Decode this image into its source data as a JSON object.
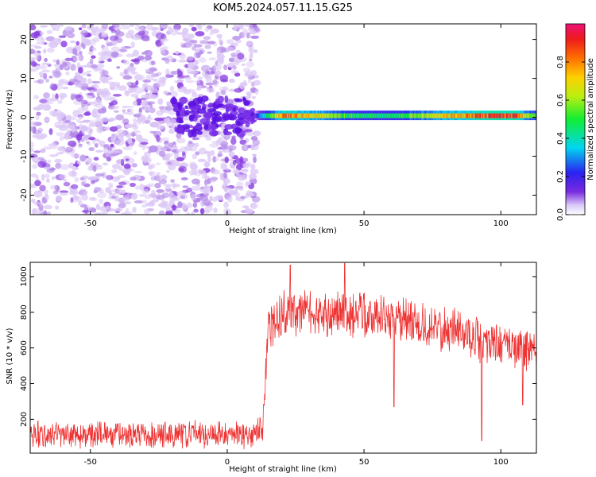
{
  "title": "KOM5.2024.057.11.15.G25",
  "chart_data": [
    {
      "type": "heatmap",
      "xlabel": "Height of straight line (km)",
      "ylabel": "Frequency (Hz)",
      "xlim": [
        -72,
        113
      ],
      "ylim": [
        -25,
        24
      ],
      "x_ticks": [
        -50,
        0,
        50,
        100
      ],
      "y_ticks": [
        -20,
        -10,
        0,
        10,
        20
      ],
      "colorbar": {
        "label": "Normalized spectral amplitude",
        "range": [
          0.0,
          1.0
        ],
        "ticks": [
          "0.0",
          "0.2",
          "0.4",
          "0.6",
          "0.8"
        ],
        "tick_values": [
          0.0,
          0.2,
          0.4,
          0.6,
          0.8
        ]
      },
      "features": {
        "noise_region_x": [
          -72,
          11
        ],
        "dense_cluster_x": [
          -20,
          10
        ],
        "carrier_line_x": [
          10,
          113
        ],
        "carrier_frequency_hz": 0.3,
        "carrier_amplitude_profile": [
          {
            "x": 12,
            "amp": 0.3
          },
          {
            "x": 20,
            "amp": 0.85
          },
          {
            "x": 30,
            "amp": 0.75
          },
          {
            "x": 45,
            "amp": 0.5
          },
          {
            "x": 60,
            "amp": 0.45
          },
          {
            "x": 75,
            "amp": 0.7
          },
          {
            "x": 90,
            "amp": 0.85
          },
          {
            "x": 105,
            "amp": 0.9
          },
          {
            "x": 113,
            "amp": 0.5
          }
        ]
      }
    },
    {
      "type": "line",
      "xlabel": "Height of straight line (km)",
      "ylabel": "SNR (10 * v/v)",
      "xlim": [
        -72,
        113
      ],
      "ylim": [
        10,
        1080
      ],
      "x_ticks": [
        -50,
        0,
        50,
        100
      ],
      "y_ticks": [
        200,
        400,
        600,
        800,
        1000
      ],
      "series": [
        {
          "color": "#ee3333",
          "trend": [
            {
              "x": -72,
              "mean": 115,
              "spread": 65
            },
            {
              "x": 10,
              "mean": 115,
              "spread": 65
            },
            {
              "x": 13,
              "mean": 180,
              "spread": 80
            },
            {
              "x": 15,
              "mean": 700,
              "spread": 110
            },
            {
              "x": 20,
              "mean": 790,
              "spread": 115
            },
            {
              "x": 40,
              "mean": 800,
              "spread": 120
            },
            {
              "x": 60,
              "mean": 760,
              "spread": 115
            },
            {
              "x": 80,
              "mean": 700,
              "spread": 110
            },
            {
              "x": 95,
              "mean": 630,
              "spread": 105
            },
            {
              "x": 113,
              "mean": 590,
              "spread": 100
            }
          ],
          "spikes": [
            {
              "x": 23,
              "value": 1065
            },
            {
              "x": 43,
              "value": 1075
            },
            {
              "x": 61,
              "value": 270
            },
            {
              "x": 93,
              "value": 80
            },
            {
              "x": 108,
              "value": 280
            }
          ]
        }
      ]
    }
  ]
}
